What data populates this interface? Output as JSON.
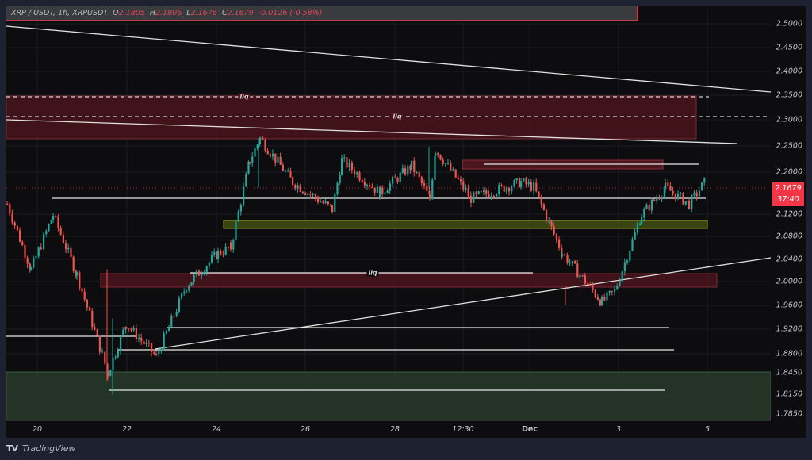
{
  "legend": {
    "symbol": "XRP / USDT, 1h, XRPUSDT",
    "open_label": "O",
    "open": "2.1805",
    "high_label": "H",
    "high": "2.1806",
    "low_label": "L",
    "low": "2.1676",
    "close_label": "C",
    "close": "2.1679",
    "change": "-0.0126 (-0.58%)"
  },
  "price_axis": {
    "ticks": [
      "2.5000",
      "2.4500",
      "2.4000",
      "2.3500",
      "2.3000",
      "2.2500",
      "2.2000",
      "2.1200",
      "2.0800",
      "2.0400",
      "2.0000",
      "1.9600",
      "1.9200",
      "1.8800",
      "1.8450",
      "1.8150",
      "1.7850"
    ],
    "last_price": "2.1679",
    "countdown": "37:40"
  },
  "time_axis": {
    "ticks": [
      "20",
      "22",
      "24",
      "26",
      "28",
      "12:30",
      "Dec",
      "3",
      "5"
    ]
  },
  "annotations": {
    "liq_labels": [
      "liq",
      "liq",
      "liq"
    ]
  },
  "footer": {
    "logo": "TV",
    "brand": "TradingView"
  },
  "colors": {
    "up": "#26a69a",
    "down": "#ef5350",
    "supply_zone": "#5a1a22",
    "demand_zone": "#2a3a28",
    "fvg_zone": "#4a5418",
    "last_price_bg": "#f23645"
  },
  "chart_data": {
    "type": "candlestick",
    "title": "XRP / USDT, 1h, XRPUSDT",
    "xlabel": "",
    "ylabel": "",
    "ylim": [
      1.77,
      2.52
    ],
    "x_ticks": [
      "20",
      "22",
      "24",
      "26",
      "28",
      "12:30",
      "Dec",
      "3",
      "5"
    ],
    "y_ticks": [
      2.5,
      2.45,
      2.4,
      2.35,
      2.3,
      2.25,
      2.2,
      2.12,
      2.08,
      2.04,
      2.0,
      1.96,
      1.92,
      1.88,
      1.845,
      1.815,
      1.785
    ],
    "ohlc_last": {
      "open": 2.1805,
      "high": 2.1806,
      "low": 2.1676,
      "close": 2.1679,
      "change": -0.0126,
      "change_pct": -0.58
    },
    "approx_path": [
      {
        "x": "19.8",
        "price": 2.17
      },
      {
        "x": "20.3",
        "price": 2.05
      },
      {
        "x": "20.6",
        "price": 2.15
      },
      {
        "x": "21.3",
        "price": 2.04
      },
      {
        "x": "21.6",
        "price": 1.86
      },
      {
        "x": "22.3",
        "price": 1.95
      },
      {
        "x": "22.6",
        "price": 1.89
      },
      {
        "x": "23.2",
        "price": 2.02
      },
      {
        "x": "24.0",
        "price": 2.08
      },
      {
        "x": "24.4",
        "price": 2.09
      },
      {
        "x": "24.6",
        "price": 2.25
      },
      {
        "x": "24.8",
        "price": 2.29
      },
      {
        "x": "25.5",
        "price": 2.21
      },
      {
        "x": "26.3",
        "price": 2.16
      },
      {
        "x": "26.7",
        "price": 2.25
      },
      {
        "x": "27.3",
        "price": 2.19
      },
      {
        "x": "27.8",
        "price": 2.24
      },
      {
        "x": "28.2",
        "price": 2.18
      },
      {
        "x": "28.6",
        "price": 2.27
      },
      {
        "x": "28.9",
        "price": 2.18
      },
      {
        "x": "29.6",
        "price": 2.21
      },
      {
        "x": "30.6",
        "price": 2.2
      },
      {
        "x": "Dec 1",
        "price": 2.08
      },
      {
        "x": "Dec 1.5",
        "price": 1.99
      },
      {
        "x": "Dec 2.3",
        "price": 2.01
      },
      {
        "x": "Dec 2.6",
        "price": 2.15
      },
      {
        "x": "Dec 3.2",
        "price": 2.2
      },
      {
        "x": "Dec 3.6",
        "price": 2.17
      },
      {
        "x": "Dec 4.1",
        "price": 2.21
      },
      {
        "x": "Dec 4.4",
        "price": 2.168
      }
    ],
    "zones": [
      {
        "kind": "supply",
        "top": 2.35,
        "bottom": 2.265,
        "label": "liq"
      },
      {
        "kind": "supply",
        "top": 2.222,
        "bottom": 2.205
      },
      {
        "kind": "fvg",
        "top": 2.108,
        "bottom": 2.095
      },
      {
        "kind": "supply",
        "top": 2.015,
        "bottom": 1.995
      },
      {
        "kind": "demand",
        "top": 1.85,
        "bottom": 1.78
      }
    ],
    "levels": [
      {
        "price": 2.345,
        "style": "dashed",
        "label": "liq"
      },
      {
        "price": 2.305,
        "style": "dashed",
        "label": "liq"
      },
      {
        "price": 2.215,
        "style": "solid"
      },
      {
        "price": 2.15,
        "style": "solid"
      },
      {
        "price": 2.018,
        "style": "solid",
        "label": "liq"
      },
      {
        "price": 1.925,
        "style": "solid"
      },
      {
        "price": 1.91,
        "style": "solid"
      },
      {
        "price": 1.89,
        "style": "solid"
      },
      {
        "price": 1.82,
        "style": "solid"
      }
    ],
    "trendlines": [
      {
        "from": {
          "x": "19.7",
          "price": 2.495
        },
        "to": {
          "x": "Dec 6",
          "price": 2.36
        }
      },
      {
        "from": {
          "x": "19.7",
          "price": 2.305
        },
        "to": {
          "x": "Dec 5.3",
          "price": 2.255
        }
      },
      {
        "from": {
          "x": "22.6",
          "price": 1.89
        },
        "to": {
          "x": "Dec 6",
          "price": 2.04
        }
      }
    ]
  }
}
